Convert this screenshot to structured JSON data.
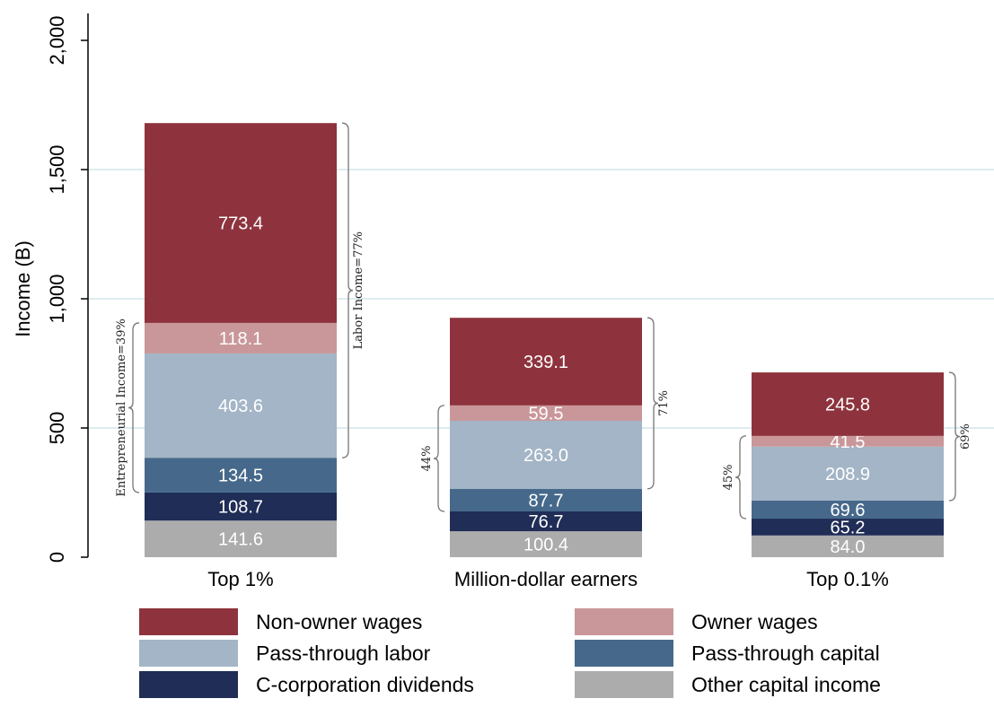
{
  "chart_data": {
    "type": "bar",
    "stacked": true,
    "ylabel": "Income (B)",
    "xlabel": "",
    "ylim": [
      0,
      2000
    ],
    "yticks": [
      0,
      500,
      1000,
      1500,
      2000
    ],
    "ytick_labels": [
      "0",
      "500",
      "1,000",
      "1,500",
      "2,000"
    ],
    "grid": true,
    "categories": [
      "Top 1%",
      "Million-dollar earners",
      "Top 0.1%"
    ],
    "series": [
      {
        "name": "Other capital income",
        "color": "#acacac",
        "values": [
          141.6,
          100.4,
          84.0
        ],
        "labels": [
          "141.6",
          "100.4",
          "84.0"
        ]
      },
      {
        "name": "C-corporation dividends",
        "color": "#1f2d57",
        "values": [
          108.7,
          76.7,
          65.2
        ],
        "labels": [
          "108.7",
          "76.7",
          "65.2"
        ]
      },
      {
        "name": "Pass-through capital",
        "color": "#46698b",
        "values": [
          134.5,
          87.7,
          69.6
        ],
        "labels": [
          "134.5",
          "87.7",
          "69.6"
        ]
      },
      {
        "name": "Pass-through labor",
        "color": "#a3b5c6",
        "values": [
          403.6,
          263.0,
          208.9
        ],
        "labels": [
          "403.6",
          "263.0",
          "208.9"
        ]
      },
      {
        "name": "Owner wages",
        "color": "#c9979a",
        "values": [
          118.1,
          59.5,
          41.5
        ],
        "labels": [
          "118.1",
          "59.5",
          "41.5"
        ]
      },
      {
        "name": "Non-owner wages",
        "color": "#8e333d",
        "values": [
          773.4,
          339.1,
          245.8
        ],
        "labels": [
          "773.4",
          "339.1",
          "245.8"
        ]
      }
    ],
    "annotations": {
      "entrepreneurial": [
        "Entrepreneurial Income=39%",
        "44%",
        "45%"
      ],
      "labor": [
        "Labor Income=77%",
        "71%",
        "69%"
      ]
    },
    "legend_placement": "bottom",
    "legend_order": [
      "Non-owner wages",
      "Owner wages",
      "Pass-through labor",
      "Pass-through capital",
      "C-corporation dividends",
      "Other capital income"
    ]
  }
}
